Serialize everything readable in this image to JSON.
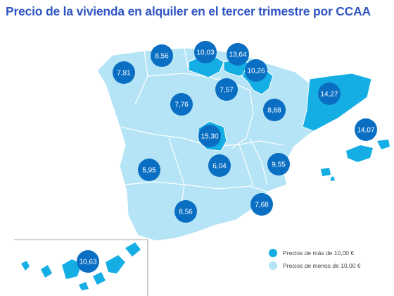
{
  "title": "Precio de la vivienda en alquiler en el tercer trimestre por CCAA",
  "colors": {
    "high": "#14aee4",
    "low": "#b4e4f6",
    "bubble": "#0a6fc3",
    "border": "#ffffff"
  },
  "legend": {
    "high": "Precios de más de 10,00 €",
    "low": "Precios de menos de 10,00 €"
  },
  "regions": [
    {
      "name": "Galicia",
      "value": "7,81",
      "category": "low"
    },
    {
      "name": "Asturias",
      "value": "8,56",
      "category": "low"
    },
    {
      "name": "Cantabria",
      "value": "10,03",
      "category": "high"
    },
    {
      "name": "País Vasco",
      "value": "13,64",
      "category": "high"
    },
    {
      "name": "Navarra",
      "value": "10,26",
      "category": "high"
    },
    {
      "name": "La Rioja",
      "value": "7,57",
      "category": "low"
    },
    {
      "name": "Castilla y León",
      "value": "7,76",
      "category": "low"
    },
    {
      "name": "Aragón",
      "value": "8,68",
      "category": "low"
    },
    {
      "name": "Cataluña",
      "value": "14,27",
      "category": "high"
    },
    {
      "name": "Baleares",
      "value": "14,07",
      "category": "high"
    },
    {
      "name": "Madrid",
      "value": "15,30",
      "category": "high"
    },
    {
      "name": "Extremadura",
      "value": "5,95",
      "category": "low"
    },
    {
      "name": "Castilla-La Mancha",
      "value": "6,04",
      "category": "low"
    },
    {
      "name": "Comunidad Valenciana",
      "value": "9,55",
      "category": "low"
    },
    {
      "name": "Murcia",
      "value": "7,68",
      "category": "low"
    },
    {
      "name": "Andalucía",
      "value": "8,56",
      "category": "low"
    },
    {
      "name": "Canarias",
      "value": "10,63",
      "category": "high"
    }
  ]
}
